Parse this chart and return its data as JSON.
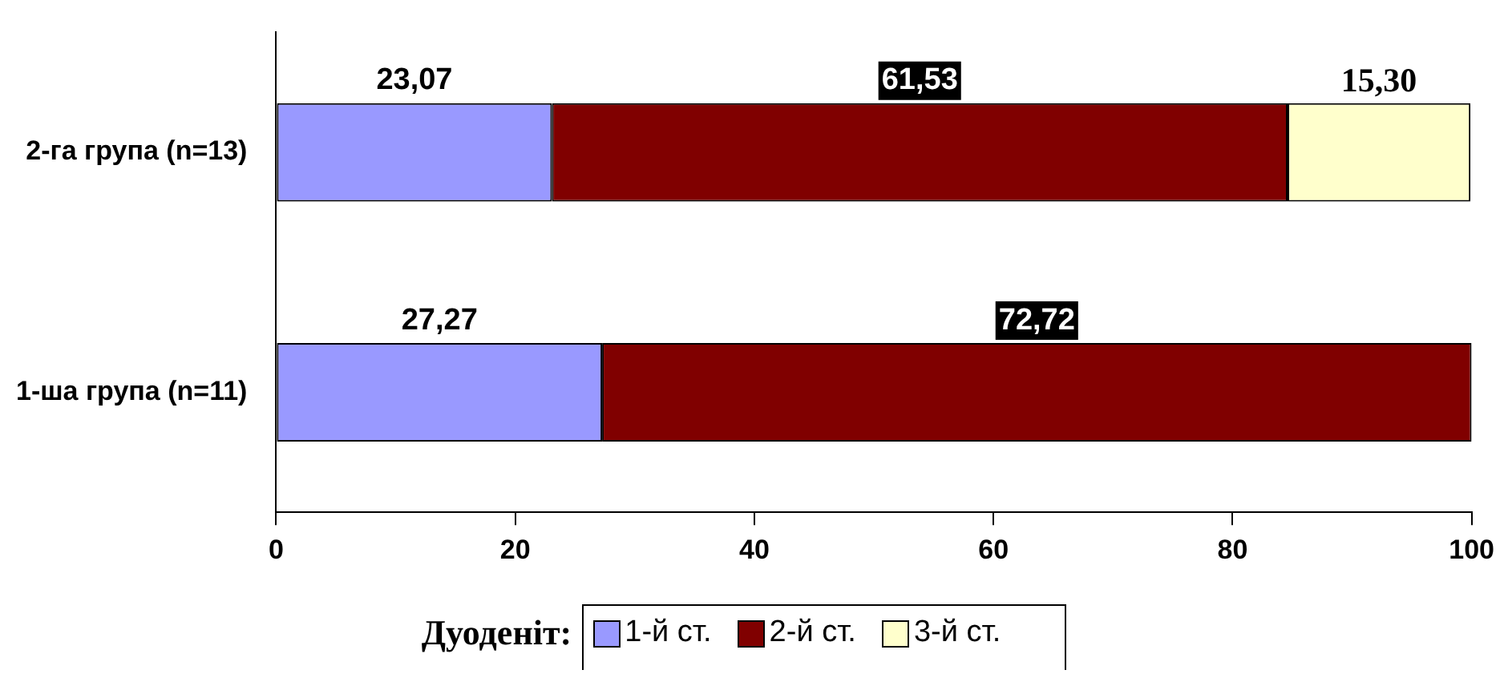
{
  "chart_data": {
    "type": "bar",
    "orientation": "horizontal",
    "stacked": true,
    "legend": "bottom",
    "legend_title": "Дуоденіт:",
    "grid": false,
    "categories": [
      "2-га група (n=13)",
      "1-ша група (n=11)"
    ],
    "xlim": [
      0,
      100
    ],
    "xticks": [
      0,
      20,
      40,
      60,
      80,
      100
    ],
    "series": [
      {
        "name": "1-й ст.",
        "color": "#9999ff",
        "values": [
          23.07,
          27.27
        ],
        "value_labels": [
          "23,07",
          "27,27"
        ]
      },
      {
        "name": "2-й ст.",
        "color": "#800000",
        "values": [
          61.53,
          72.72
        ],
        "value_labels": [
          "61,53",
          "72,72"
        ]
      },
      {
        "name": "3-й ст.",
        "color": "#ffffcc",
        "values": [
          15.3,
          null
        ],
        "value_labels": [
          "15,30",
          null
        ]
      }
    ]
  }
}
